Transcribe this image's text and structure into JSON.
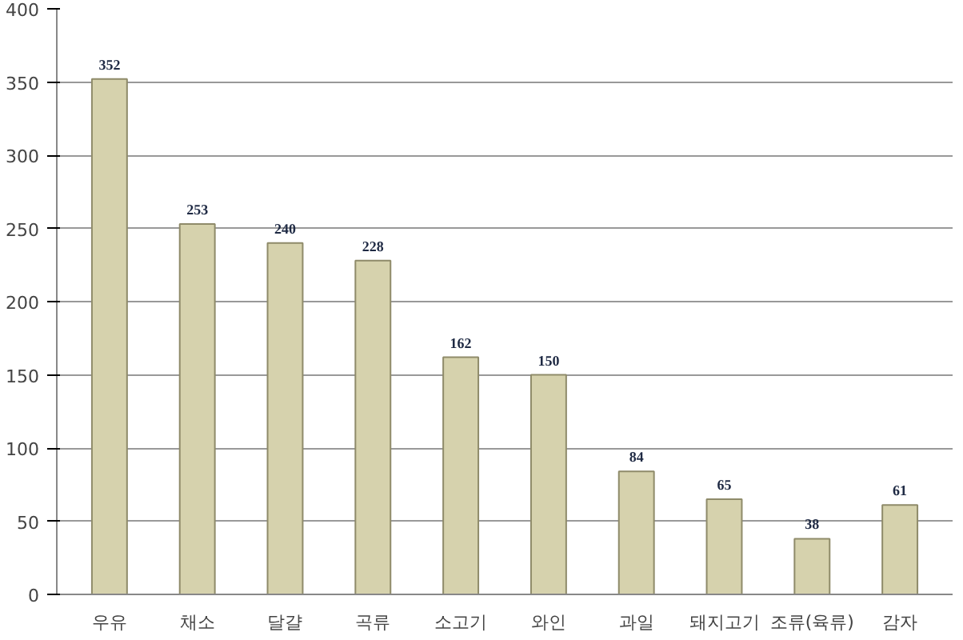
{
  "chart_data": {
    "type": "bar",
    "categories": [
      "우유",
      "채소",
      "달걀",
      "곡류",
      "소고기",
      "와인",
      "과일",
      "돼지고기",
      "조류(육류)",
      "감자"
    ],
    "values": [
      352,
      253,
      240,
      228,
      162,
      150,
      84,
      65,
      38,
      61
    ],
    "color": "#d6d2ad",
    "ylim": [
      0,
      400
    ],
    "yticks": [
      0,
      50,
      100,
      150,
      200,
      250,
      300,
      350,
      400
    ],
    "grid": "y",
    "data_labels": true
  }
}
